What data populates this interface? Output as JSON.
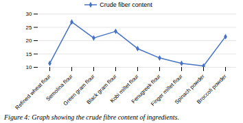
{
  "chart_data": {
    "type": "line",
    "categories": [
      "Refined wheat flour",
      "Semolina flour",
      "Green gram flour",
      "Black gram flour",
      "Kobi millet flour",
      "Fenugreek flour",
      "Finger millet flour",
      "Spinach powder",
      "Broccoli powder"
    ],
    "series": [
      {
        "name": "Crude fiber content",
        "color": "#4472C4",
        "marker": "diamond",
        "values": [
          11.5,
          27.0,
          21.0,
          23.5,
          17.0,
          13.5,
          11.5,
          10.5,
          21.5
        ]
      }
    ],
    "ylim": [
      10,
      30
    ],
    "yticks": [
      10,
      15,
      20,
      25,
      30
    ],
    "grid": true,
    "legend": "top",
    "caption": "Figure 4: Graph showing the crude fibre content of ingredients."
  }
}
